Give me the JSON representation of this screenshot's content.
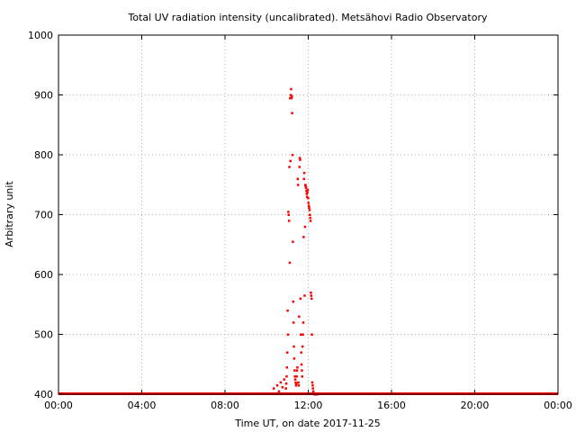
{
  "chart_data": {
    "type": "scatter",
    "title": "Total UV radiation intensity (uncalibrated). Metsähovi Radio Observatory",
    "xlabel": "Time UT, on date 2017-11-25",
    "ylabel": "Arbitrary unit",
    "xlim": [
      "00:00",
      "24:00"
    ],
    "ylim": [
      400,
      1000
    ],
    "x_ticks": [
      "00:00",
      "04:00",
      "08:00",
      "12:00",
      "16:00",
      "20:00",
      "00:00"
    ],
    "y_ticks": [
      400,
      500,
      600,
      700,
      800,
      900,
      1000
    ],
    "grid": true,
    "marker_color": "#ff0000",
    "baseline": {
      "value": 400,
      "from": "00:00",
      "to": "24:00"
    },
    "series": [
      {
        "x": [
          "10:20",
          "10:30",
          "10:35",
          "10:40",
          "10:45",
          "10:50",
          "10:55",
          "10:56",
          "10:57",
          "10:58",
          "10:59",
          "11:00",
          "11:01",
          "11:02",
          "11:03",
          "11:04",
          "11:05",
          "11:06",
          "11:07",
          "11:08",
          "11:09",
          "11:10",
          "11:11",
          "11:12",
          "11:13",
          "11:14",
          "11:15",
          "11:16",
          "11:17",
          "11:18",
          "11:19",
          "11:20",
          "11:21",
          "11:22",
          "11:23",
          "11:24",
          "11:25",
          "11:26",
          "11:27",
          "11:28",
          "11:29",
          "11:30",
          "11:31",
          "11:32",
          "11:33",
          "11:34",
          "11:35",
          "11:36",
          "11:37",
          "11:38",
          "11:39",
          "11:40",
          "11:41",
          "11:42",
          "11:43",
          "11:44",
          "11:45",
          "11:46",
          "11:47",
          "11:48",
          "11:49",
          "11:50",
          "11:51",
          "11:52",
          "11:53",
          "11:54",
          "11:55",
          "11:56",
          "11:57",
          "11:58",
          "11:59",
          "12:00",
          "12:01",
          "12:02",
          "12:03",
          "12:04",
          "12:05",
          "12:06",
          "12:07",
          "12:08",
          "12:09",
          "12:10",
          "12:11",
          "12:12",
          "12:13",
          "12:14",
          "12:15",
          "12:16",
          "12:17",
          "12:18",
          "12:19",
          "12:20",
          "12:21",
          "12:22",
          "12:24",
          "12:26"
        ],
        "y": [
          410,
          415,
          405,
          420,
          412,
          425,
          410,
          418,
          430,
          445,
          470,
          540,
          500,
          705,
          700,
          690,
          780,
          620,
          895,
          790,
          900,
          910,
          895,
          898,
          870,
          800,
          655,
          555,
          520,
          480,
          460,
          440,
          430,
          425,
          420,
          415,
          418,
          430,
          440,
          445,
          760,
          750,
          420,
          415,
          530,
          780,
          795,
          792,
          560,
          500,
          470,
          450,
          440,
          430,
          480,
          500,
          520,
          663,
          760,
          770,
          565,
          680,
          750,
          748,
          745,
          740,
          735,
          730,
          738,
          742,
          728,
          720,
          715,
          712,
          708,
          700,
          695,
          690,
          570,
          565,
          560,
          500,
          420,
          415,
          410,
          405,
          402,
          401,
          400,
          400,
          400,
          400,
          400,
          400,
          400,
          400
        ]
      }
    ]
  }
}
